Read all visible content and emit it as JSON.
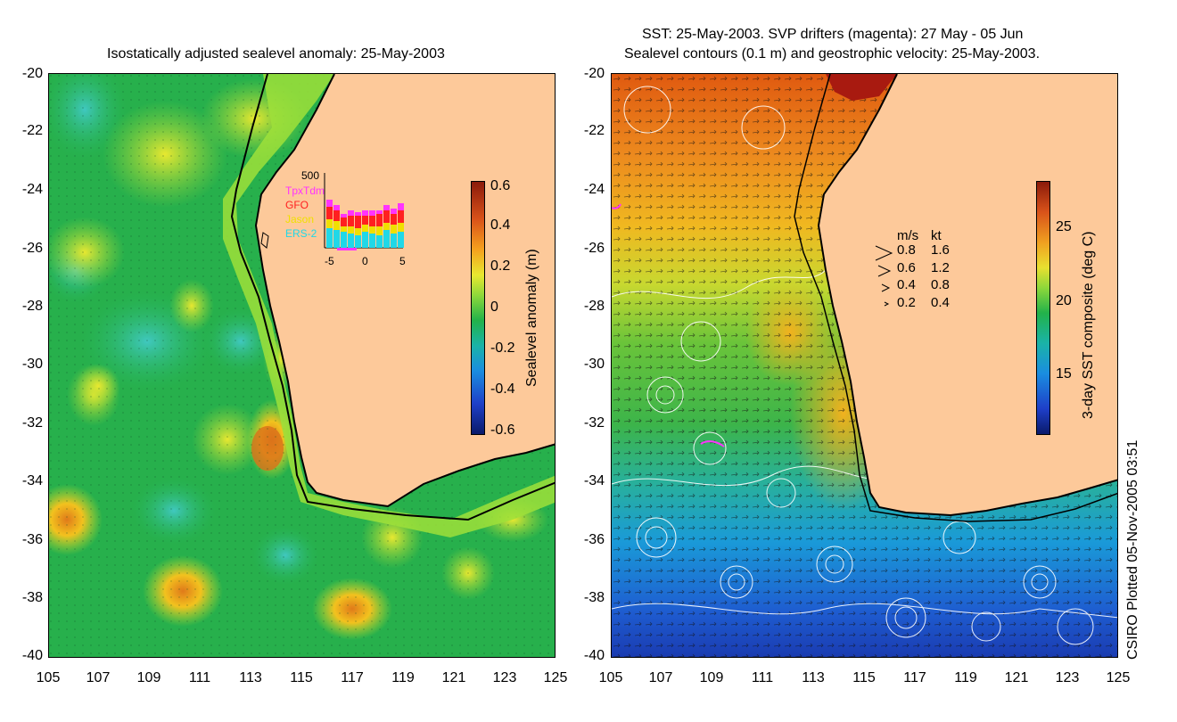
{
  "left_panel": {
    "title": "Isostatically adjusted sealevel anomaly: 25-May-2003",
    "y_ticks": [
      "-20",
      "-22",
      "-24",
      "-26",
      "-28",
      "-30",
      "-32",
      "-34",
      "-36",
      "-38",
      "-40"
    ],
    "x_ticks": [
      "105",
      "107",
      "109",
      "111",
      "113",
      "115",
      "117",
      "119",
      "121",
      "123",
      "125"
    ],
    "colorbar": {
      "label": "Sealevel anomaly (m)",
      "ticks": [
        "0.6",
        "0.4",
        "0.2",
        "0",
        "-0.2",
        "-0.4",
        "-0.6"
      ]
    },
    "histogram": {
      "ymax_label": "500",
      "satellites": [
        {
          "name": "TpxTdm",
          "color": "#ff33ff"
        },
        {
          "name": "GFO",
          "color": "#ff2020"
        },
        {
          "name": "Jason",
          "color": "#f0e000"
        },
        {
          "name": "ERS-2",
          "color": "#20d8e8"
        }
      ],
      "x_ticks": [
        "-5",
        "0",
        "5"
      ]
    },
    "colors": {
      "ocean": "#22b24a",
      "land": "#fdc99a",
      "coast": "#000000"
    }
  },
  "right_panel": {
    "title_line1": "SST: 25-May-2003. SVP drifters (magenta): 27 May - 05 Jun",
    "title_line2": "Sealevel contours (0.1 m) and geostrophic velocity: 25-May-2003.",
    "y_ticks": [
      "-20",
      "-22",
      "-24",
      "-26",
      "-28",
      "-30",
      "-32",
      "-34",
      "-36",
      "-38",
      "-40"
    ],
    "x_ticks": [
      "105",
      "107",
      "109",
      "111",
      "113",
      "115",
      "117",
      "119",
      "121",
      "123",
      "125"
    ],
    "colorbar": {
      "label": "3-day SST composite (deg C)",
      "ticks": [
        "25",
        "20",
        "15"
      ]
    },
    "velocity_legend": {
      "header_ms": "m/s",
      "header_kt": "kt",
      "rows": [
        {
          "ms": "0.8",
          "kt": "1.6"
        },
        {
          "ms": "0.6",
          "kt": "1.2"
        },
        {
          "ms": "0.4",
          "kt": "0.8"
        },
        {
          "ms": "0.2",
          "kt": "0.4"
        }
      ]
    }
  },
  "credit": "CSIRO Plotted 05-Nov-2005 03:51"
}
